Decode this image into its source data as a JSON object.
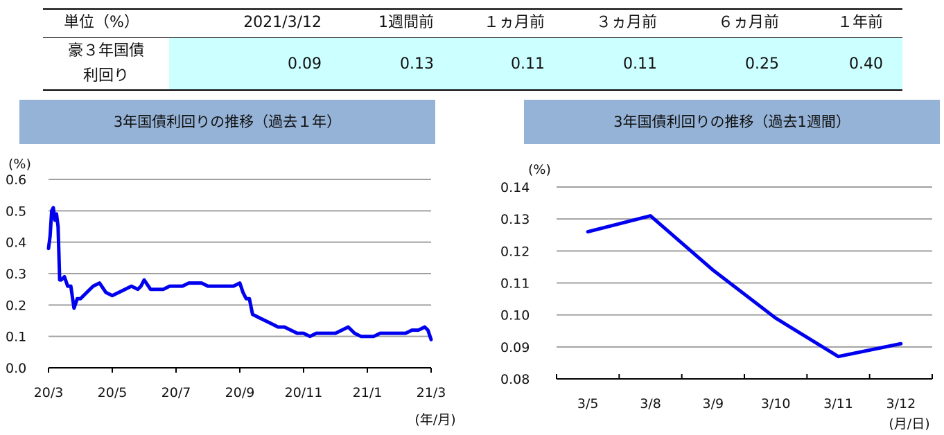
{
  "table": {
    "header_label": "単位（%）",
    "columns": [
      "2021/3/12",
      "1週間前",
      "１ヵ月前",
      "３ヵ月前",
      "６ヵ月前",
      "１年前"
    ],
    "row_label_line1": "豪３年国債",
    "row_label_line2": "利回り",
    "values": [
      "0.09",
      "0.13",
      "0.11",
      "0.11",
      "0.25",
      "0.40"
    ],
    "highlight_color": "#ccffff"
  },
  "chart1_title": "3年国債利回りの推移（過去１年）",
  "chart2_title": "3年国債利回りの推移（過去1週間）",
  "chart_data": [
    {
      "type": "line",
      "title": "3年国債利回りの推移（過去１年）",
      "ylabel": "(%)",
      "xlabel": "(年/月)",
      "ylim": [
        0.0,
        0.6
      ],
      "yticks": [
        "0.0",
        "0.1",
        "0.2",
        "0.3",
        "0.4",
        "0.5",
        "0.6"
      ],
      "xtick_labels": [
        "20/3",
        "20/5",
        "20/7",
        "20/9",
        "20/11",
        "21/1",
        "21/3"
      ],
      "grid": true,
      "line_color": "#0000ee",
      "series": [
        {
          "x_months": [
            0,
            0.05,
            0.1,
            0.15,
            0.2,
            0.25,
            0.3,
            0.35,
            0.4,
            0.5,
            0.6,
            0.7,
            0.8,
            0.9,
            1.0,
            1.2,
            1.4,
            1.6,
            1.8,
            2.0,
            2.2,
            2.4,
            2.6,
            2.8,
            2.9,
            3.0,
            3.2,
            3.4,
            3.6,
            3.8,
            4.0,
            4.2,
            4.4,
            4.6,
            4.8,
            5.0,
            5.2,
            5.4,
            5.6,
            5.8,
            6.0,
            6.1,
            6.2,
            6.3,
            6.4,
            6.6,
            6.8,
            7.0,
            7.2,
            7.4,
            7.6,
            7.8,
            8.0,
            8.2,
            8.4,
            8.6,
            8.8,
            9.0,
            9.2,
            9.4,
            9.6,
            9.8,
            10.0,
            10.2,
            10.4,
            10.6,
            10.8,
            11.0,
            11.2,
            11.4,
            11.6,
            11.8,
            11.9,
            12.0
          ],
          "values": [
            0.38,
            0.42,
            0.5,
            0.51,
            0.47,
            0.49,
            0.45,
            0.28,
            0.28,
            0.29,
            0.26,
            0.26,
            0.19,
            0.22,
            0.22,
            0.24,
            0.26,
            0.27,
            0.24,
            0.23,
            0.24,
            0.25,
            0.26,
            0.25,
            0.26,
            0.28,
            0.25,
            0.25,
            0.25,
            0.26,
            0.26,
            0.26,
            0.27,
            0.27,
            0.27,
            0.26,
            0.26,
            0.26,
            0.26,
            0.26,
            0.27,
            0.24,
            0.22,
            0.22,
            0.17,
            0.16,
            0.15,
            0.14,
            0.13,
            0.13,
            0.12,
            0.11,
            0.11,
            0.1,
            0.11,
            0.11,
            0.11,
            0.11,
            0.12,
            0.13,
            0.11,
            0.1,
            0.1,
            0.1,
            0.11,
            0.11,
            0.11,
            0.11,
            0.11,
            0.12,
            0.12,
            0.13,
            0.12,
            0.09
          ]
        }
      ]
    },
    {
      "type": "line",
      "title": "3年国債利回りの推移（過去1週間）",
      "ylabel": "(%)",
      "xlabel": "(月/日)",
      "ylim": [
        0.08,
        0.14
      ],
      "yticks": [
        "0.08",
        "0.09",
        "0.10",
        "0.11",
        "0.12",
        "0.13",
        "0.14"
      ],
      "categories": [
        "3/5",
        "3/8",
        "3/9",
        "3/10",
        "3/11",
        "3/12"
      ],
      "grid": true,
      "line_color": "#0000ee",
      "series": [
        {
          "values": [
            0.126,
            0.131,
            0.114,
            0.099,
            0.087,
            0.091
          ]
        }
      ]
    }
  ]
}
